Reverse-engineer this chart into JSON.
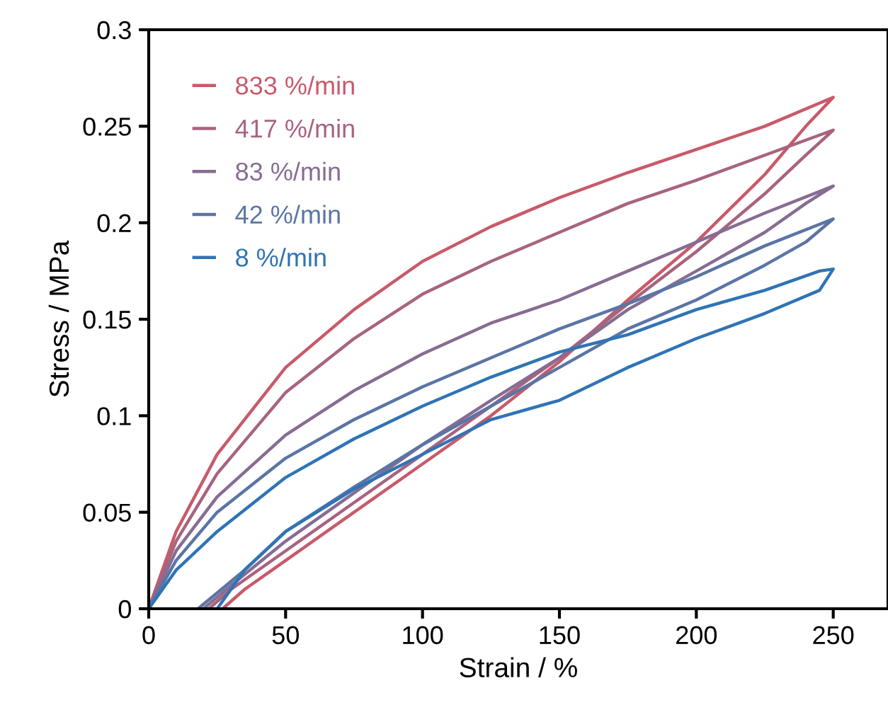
{
  "chart_data": {
    "type": "line",
    "xlabel": "Strain / %",
    "ylabel": "Stress / MPa",
    "xlim": [
      0,
      270
    ],
    "xticks": [
      0,
      50,
      100,
      150,
      200,
      250
    ],
    "ylim": [
      0,
      0.3
    ],
    "yticks": [
      0,
      0.05,
      0.1,
      0.15,
      0.2,
      0.25,
      0.3
    ],
    "legend": "top left",
    "grid": false,
    "marker": "none",
    "line_style": "solid",
    "series": [
      {
        "name": "833 %/min",
        "color": "#c85a6a",
        "x": [
          0,
          10,
          25,
          50,
          75,
          100,
          125,
          150,
          175,
          200,
          225,
          250,
          240,
          225,
          200,
          175,
          150,
          125,
          100,
          75,
          50,
          35,
          27
        ],
        "values": [
          0,
          0.04,
          0.08,
          0.125,
          0.155,
          0.18,
          0.198,
          0.213,
          0.226,
          0.238,
          0.25,
          0.265,
          0.25,
          0.225,
          0.19,
          0.16,
          0.128,
          0.1,
          0.075,
          0.05,
          0.025,
          0.01,
          0
        ]
      },
      {
        "name": "417 %/min",
        "color": "#a8637f",
        "x": [
          0,
          10,
          25,
          50,
          75,
          100,
          125,
          150,
          175,
          200,
          225,
          250,
          240,
          225,
          200,
          175,
          150,
          125,
          100,
          75,
          50,
          30,
          22
        ],
        "values": [
          0,
          0.035,
          0.07,
          0.112,
          0.14,
          0.163,
          0.18,
          0.195,
          0.21,
          0.222,
          0.235,
          0.248,
          0.235,
          0.215,
          0.185,
          0.158,
          0.13,
          0.105,
          0.08,
          0.055,
          0.03,
          0.01,
          0
        ]
      },
      {
        "name": "83 %/min",
        "color": "#876c92",
        "x": [
          0,
          10,
          25,
          50,
          75,
          100,
          125,
          150,
          175,
          200,
          225,
          250,
          240,
          225,
          200,
          175,
          150,
          125,
          100,
          75,
          50,
          30,
          20
        ],
        "values": [
          0,
          0.03,
          0.058,
          0.09,
          0.113,
          0.132,
          0.148,
          0.16,
          0.175,
          0.19,
          0.205,
          0.219,
          0.21,
          0.195,
          0.175,
          0.155,
          0.13,
          0.108,
          0.085,
          0.06,
          0.035,
          0.012,
          0
        ]
      },
      {
        "name": "42 %/min",
        "color": "#5a75a5",
        "x": [
          0,
          10,
          25,
          50,
          75,
          100,
          125,
          150,
          175,
          200,
          225,
          250,
          240,
          225,
          200,
          175,
          150,
          125,
          100,
          75,
          50,
          35,
          18
        ],
        "values": [
          0,
          0.025,
          0.05,
          0.078,
          0.098,
          0.115,
          0.13,
          0.145,
          0.158,
          0.172,
          0.188,
          0.202,
          0.19,
          0.178,
          0.16,
          0.145,
          0.125,
          0.105,
          0.085,
          0.063,
          0.04,
          0.02,
          0
        ]
      },
      {
        "name": "8 %/min",
        "color": "#2f74b5",
        "x": [
          0,
          10,
          25,
          50,
          75,
          100,
          125,
          150,
          175,
          200,
          225,
          245,
          250,
          245,
          225,
          200,
          175,
          150,
          125,
          100,
          75,
          50,
          35,
          25
        ],
        "values": [
          0,
          0.02,
          0.04,
          0.068,
          0.088,
          0.105,
          0.12,
          0.133,
          0.142,
          0.155,
          0.165,
          0.175,
          0.176,
          0.165,
          0.153,
          0.14,
          0.125,
          0.108,
          0.098,
          0.08,
          0.062,
          0.04,
          0.02,
          0
        ]
      }
    ]
  }
}
